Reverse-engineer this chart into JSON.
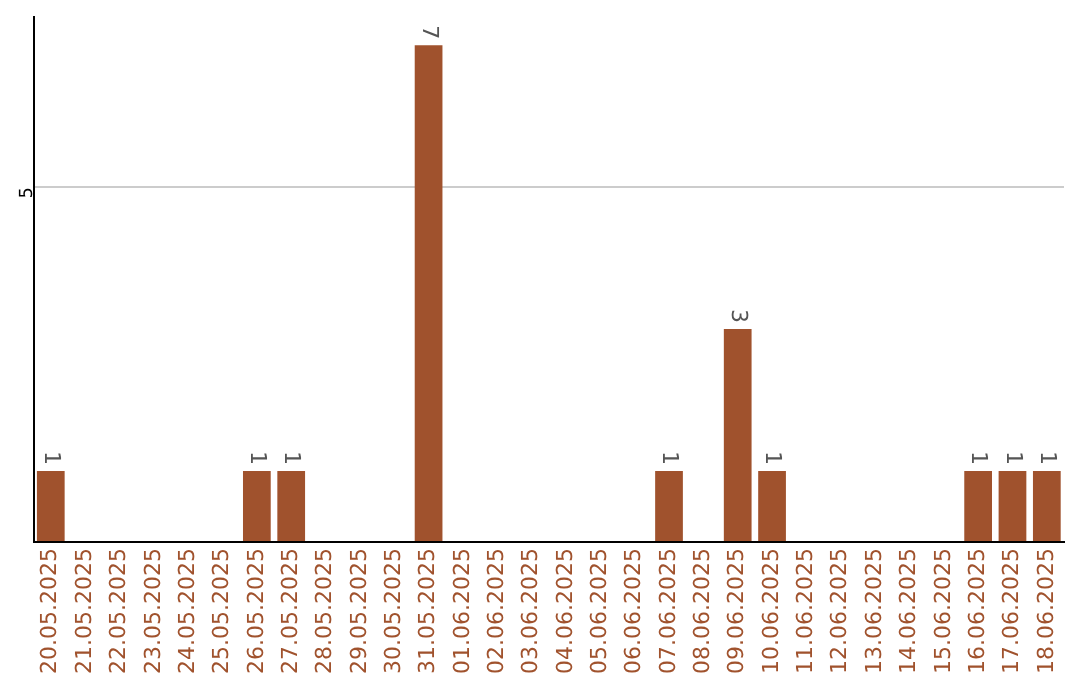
{
  "chart_data": {
    "type": "bar",
    "categories": [
      "20.05.2025",
      "21.05.2025",
      "22.05.2025",
      "23.05.2025",
      "24.05.2025",
      "25.05.2025",
      "26.05.2025",
      "27.05.2025",
      "28.05.2025",
      "29.05.2025",
      "30.05.2025",
      "31.05.2025",
      "01.06.2025",
      "02.06.2025",
      "03.06.2025",
      "04.06.2025",
      "05.06.2025",
      "06.06.2025",
      "07.06.2025",
      "08.06.2025",
      "09.06.2025",
      "10.06.2025",
      "11.06.2025",
      "12.06.2025",
      "13.06.2025",
      "14.06.2025",
      "15.06.2025",
      "16.06.2025",
      "17.06.2025",
      "18.06.2025"
    ],
    "values": [
      1,
      0,
      0,
      0,
      0,
      0,
      1,
      1,
      0,
      0,
      0,
      7,
      0,
      0,
      0,
      0,
      0,
      0,
      1,
      0,
      3,
      1,
      0,
      0,
      0,
      0,
      0,
      1,
      1,
      1
    ],
    "value_labels": [
      "1",
      null,
      null,
      null,
      null,
      null,
      "1",
      "1",
      null,
      null,
      null,
      "7",
      null,
      null,
      null,
      null,
      null,
      null,
      "1",
      null,
      "3",
      "1",
      null,
      null,
      null,
      null,
      null,
      "1",
      "1",
      "1"
    ],
    "color": "#a0522d",
    "ylim": [
      0,
      7.4
    ],
    "yticks": [
      {
        "value": 0,
        "label": null
      },
      5
    ],
    "grid": "y",
    "legend": false
  }
}
